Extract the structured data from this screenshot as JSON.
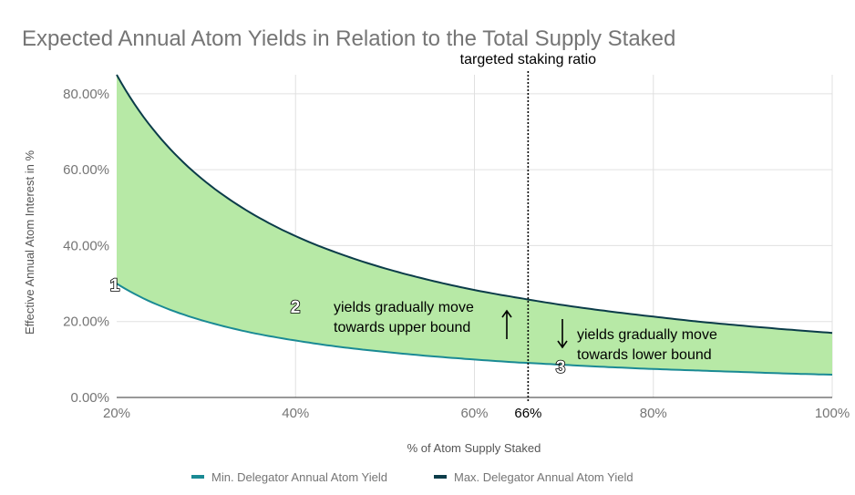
{
  "chart_data": {
    "type": "area",
    "title": "Expected Annual Atom Yields in Relation to the Total Supply Staked",
    "xlabel": "% of Atom Supply Staked",
    "ylabel": "Effective Annual Atom Interest in %",
    "xlim": [
      20,
      100
    ],
    "ylim": [
      0,
      85
    ],
    "x_ticks": [
      {
        "value": 20,
        "label": "20%"
      },
      {
        "value": 40,
        "label": "40%"
      },
      {
        "value": 60,
        "label": "60%"
      },
      {
        "value": 66,
        "label": "66%"
      },
      {
        "value": 80,
        "label": "80%"
      },
      {
        "value": 100,
        "label": "100%"
      }
    ],
    "y_ticks": [
      {
        "value": 0,
        "label": "0.00%"
      },
      {
        "value": 20,
        "label": "20.00%"
      },
      {
        "value": 40,
        "label": "40.00%"
      },
      {
        "value": 60,
        "label": "60.00%"
      },
      {
        "value": 80,
        "label": "80.00%"
      }
    ],
    "x": [
      20,
      25,
      30,
      35,
      40,
      45,
      50,
      55,
      60,
      65,
      66,
      70,
      75,
      80,
      85,
      90,
      95,
      100
    ],
    "series": [
      {
        "name": "Min. Delegator Annual Atom Yield",
        "color": "#1a8a94",
        "values": [
          30,
          24,
          20,
          17.1,
          15,
          13.3,
          12,
          10.9,
          10,
          9.2,
          9.1,
          8.6,
          8,
          7.5,
          7.1,
          6.7,
          6.3,
          6
        ]
      },
      {
        "name": "Max. Delegator Annual Atom Yield",
        "color": "#0b3c49",
        "values": [
          85,
          68,
          56.7,
          48.6,
          42.5,
          37.8,
          34,
          30.9,
          28.3,
          26.2,
          25.8,
          24.3,
          22.7,
          21.3,
          20,
          18.9,
          17.9,
          17
        ]
      }
    ],
    "fill_color": "#b7e9a6",
    "reference_line": {
      "x": 66,
      "label": "targeted staking ratio"
    },
    "annotations": [
      {
        "badge": "1",
        "x": 20,
        "y": 30
      },
      {
        "badge": "2",
        "x": 40,
        "y": 24,
        "text_lines": [
          "yields gradually move",
          "towards upper bound"
        ],
        "arrow": "up"
      },
      {
        "badge": "3",
        "x": 69,
        "y": 8.5,
        "text_lines": [
          "yields gradually move",
          "towards lower bound"
        ],
        "arrow": "down"
      }
    ],
    "grid": true,
    "legend_position": "bottom"
  }
}
